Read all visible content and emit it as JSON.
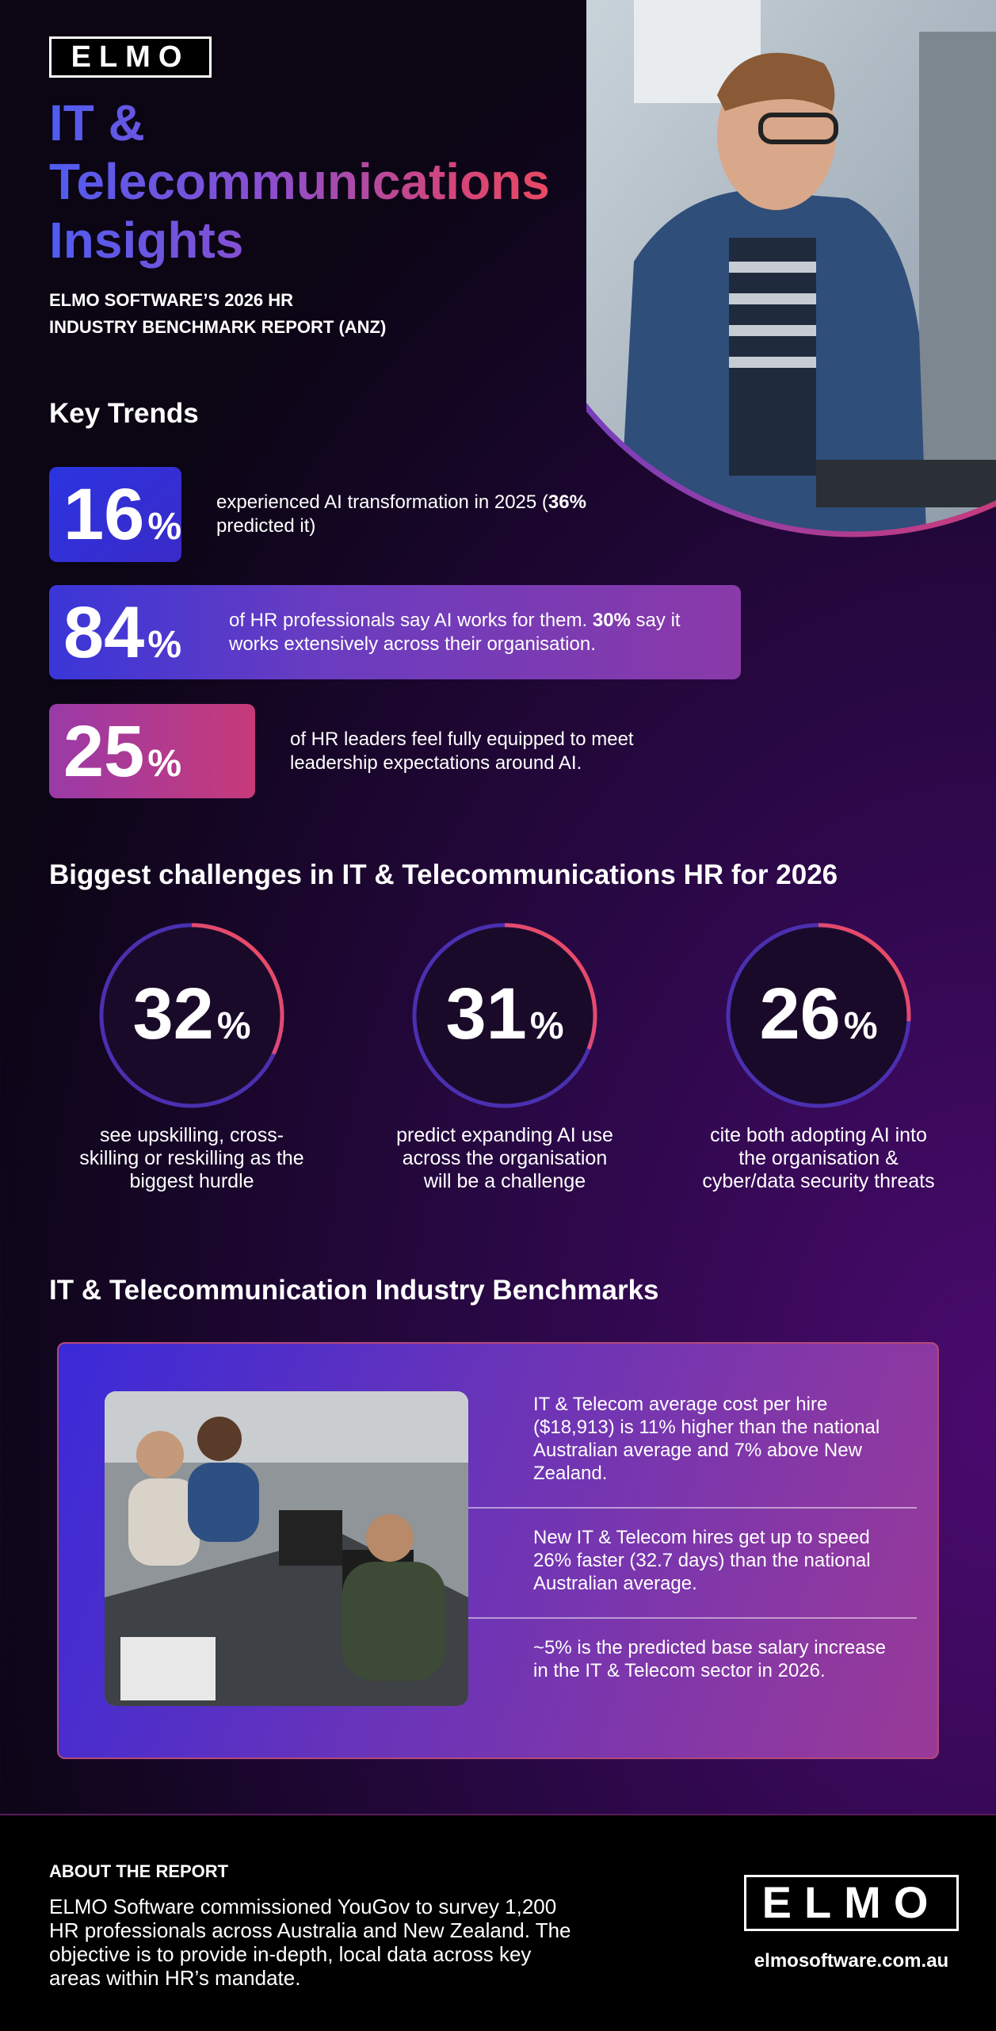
{
  "header": {
    "logo": "ELMO",
    "title_lines": [
      "IT &",
      "Telecommunications",
      "Insights"
    ],
    "subtitle_lines": [
      "ELMO SOFTWARE’S 2026 HR",
      "INDUSTRY BENCHMARK REPORT (ANZ)"
    ]
  },
  "key_trends": {
    "heading": "Key Trends",
    "items": [
      {
        "value": 16,
        "unit": "%",
        "text": [
          {
            "text": "experienced AI transformation in 2025 ("
          },
          {
            "text": "36%",
            "bold": true
          },
          {
            "text": " predicted it)"
          }
        ]
      },
      {
        "value": 84,
        "unit": "%",
        "text": [
          {
            "text": "of HR professionals say AI works for them. "
          },
          {
            "text": "30%",
            "bold": true
          },
          {
            "text": " say it works extensively across their organisation."
          }
        ]
      },
      {
        "value": 25,
        "unit": "%",
        "text": [
          {
            "text": "of HR leaders feel fully equipped to meet leadership expectations around AI."
          }
        ]
      }
    ]
  },
  "challenges": {
    "heading": "Biggest challenges in IT & Telecommunications HR for 2026",
    "items": [
      {
        "value": 32,
        "unit": "%",
        "caption": "see upskilling, cross-skilling or reskilling as the biggest hurdle"
      },
      {
        "value": 31,
        "unit": "%",
        "caption": "predict expanding AI use across the organisation will be a challenge"
      },
      {
        "value": 26,
        "unit": "%",
        "caption": "cite both adopting AI into the organisation & cyber/data security threats"
      }
    ]
  },
  "benchmarks": {
    "heading": "IT & Telecommunication Industry Benchmarks",
    "items": [
      "IT & Telecom average cost per hire ($18,913) is 11% higher than the national Australian average and 7% above New Zealand.",
      "New IT & Telecom hires get up to speed 26% faster (32.7 days) than the national Australian average.",
      "~5% is the predicted base salary increase in the IT & Telecom sector in 2026."
    ]
  },
  "footer": {
    "heading": "ABOUT THE REPORT",
    "text": "ELMO Software commissioned YouGov to survey 1,200 HR professionals across Australia and New Zealand. The objective is to provide in-depth, local data across key areas within HR’s mandate.",
    "logo": "ELMO",
    "url": "elmosoftware.com.au"
  }
}
